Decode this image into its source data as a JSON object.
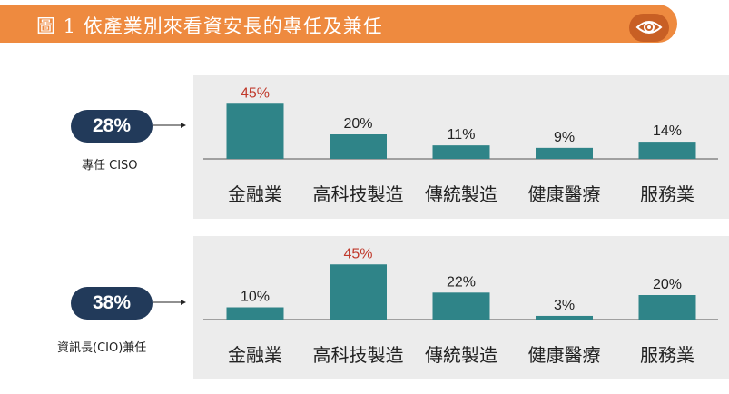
{
  "header": {
    "title": "圖 1  依產業別來看資安長的專任及兼任",
    "icon": "eye-icon"
  },
  "colors": {
    "banner": "#ee8a3f",
    "pill": "#223a5a",
    "bar": "#2f8488",
    "highlight": "#c0392b",
    "panel": "#ececec"
  },
  "groups": [
    {
      "percent": "28%",
      "label": "專任 CISO"
    },
    {
      "percent": "38%",
      "label": "資訊長(CIO)兼任"
    }
  ],
  "chart_data": [
    {
      "type": "bar",
      "categories": [
        "金融業",
        "高科技製造",
        "傳統製造",
        "健康醫療",
        "服務業"
      ],
      "values": [
        45,
        20,
        11,
        9,
        14
      ],
      "value_labels": [
        "45%",
        "20%",
        "11%",
        "9%",
        "14%"
      ],
      "highlight_index": 0,
      "ylim": [
        0,
        50
      ]
    },
    {
      "type": "bar",
      "categories": [
        "金融業",
        "高科技製造",
        "傳統製造",
        "健康醫療",
        "服務業"
      ],
      "values": [
        10,
        45,
        22,
        3,
        20
      ],
      "value_labels": [
        "10%",
        "45%",
        "22%",
        "3%",
        "20%"
      ],
      "highlight_index": 1,
      "ylim": [
        0,
        50
      ]
    }
  ]
}
